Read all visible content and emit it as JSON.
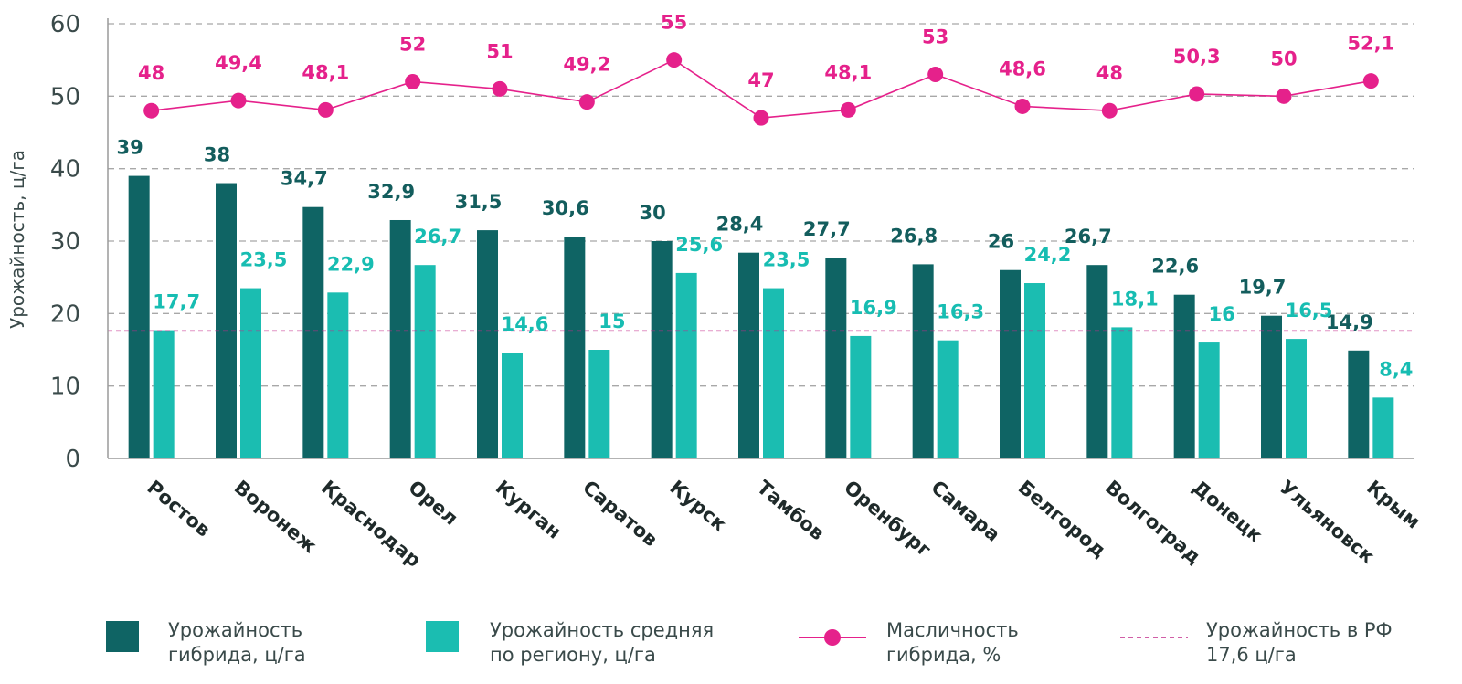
{
  "chart_data": {
    "type": "bar",
    "ylabel": "Урожайность, ц/га",
    "ylim": [
      0,
      60
    ],
    "yticks": [
      "0",
      "10",
      "20",
      "30",
      "40",
      "50",
      "60"
    ],
    "grid": "dashed horizontal",
    "categories": [
      "Ростов",
      "Воронеж",
      "Краснодар",
      "Орел",
      "Курган",
      "Саратов",
      "Курск",
      "Тамбов",
      "Оренбург",
      "Самара",
      "Белгород",
      "Волгоград",
      "Донецк",
      "Ульяновск",
      "Крым"
    ],
    "series": [
      {
        "name_line1": "Урожайность",
        "name_line2": "гибрида, ц/га",
        "kind": "bar",
        "color": "#0f6464",
        "values": [
          39,
          38,
          34.7,
          32.9,
          31.5,
          30.6,
          30,
          28.4,
          27.7,
          26.8,
          26,
          26.7,
          22.6,
          19.7,
          14.9
        ],
        "labels": [
          "39",
          "38",
          "34,7",
          "32,9",
          "31,5",
          "30,6",
          "30",
          "28,4",
          "27,7",
          "26,8",
          "26",
          "26,7",
          "22,6",
          "19,7",
          "14,9"
        ]
      },
      {
        "name_line1": "Урожайность средняя",
        "name_line2": "по региону, ц/га",
        "kind": "bar",
        "color": "#1bbdb1",
        "values": [
          17.7,
          23.5,
          22.9,
          26.7,
          14.6,
          15,
          25.6,
          23.5,
          16.9,
          16.3,
          24.2,
          18.1,
          16,
          16.5,
          8.4
        ],
        "labels": [
          "17,7",
          "23,5",
          "22,9",
          "26,7",
          "14,6",
          "15",
          "25,6",
          "23,5",
          "16,9",
          "16,3",
          "24,2",
          "18,1",
          "16",
          "16,5",
          "8,4"
        ]
      },
      {
        "name_line1": "Масличность",
        "name_line2": "гибрида, %",
        "kind": "line",
        "color": "#e5218b",
        "values": [
          48,
          49.4,
          48.1,
          52,
          51,
          49.2,
          55,
          47,
          48.1,
          53,
          48.6,
          48,
          50.3,
          50,
          52.1
        ],
        "labels": [
          "48",
          "49,4",
          "48,1",
          "52",
          "51",
          "49,2",
          "55",
          "47",
          "48,1",
          "53",
          "48,6",
          "48",
          "50,3",
          "50",
          "52,1"
        ]
      }
    ],
    "reference_line": {
      "name_line1": "Урожайность в РФ",
      "name_line2": "17,6 ц/га",
      "value": 17.6,
      "color": "#c2288a"
    }
  }
}
